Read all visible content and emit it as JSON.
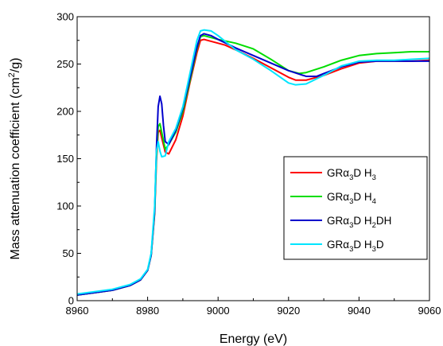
{
  "chart_data": {
    "type": "line",
    "xlabel": "Energy (eV)",
    "ylabel": "Mass attenuation coefficient (cm²/g)",
    "xlim": [
      8960,
      9060
    ],
    "ylim": [
      0,
      300
    ],
    "xticks": [
      8960,
      8980,
      9000,
      9020,
      9040,
      9060
    ],
    "yticks": [
      0,
      50,
      100,
      150,
      200,
      250,
      300
    ],
    "grid": false,
    "legend_position": "right",
    "series": [
      {
        "name": "GRα3D H3",
        "label_parts": [
          [
            "GR",
            ""
          ],
          [
            "α",
            ""
          ],
          [
            "3",
            "sub"
          ],
          [
            "D H",
            ""
          ],
          [
            "3",
            "sub"
          ]
        ],
        "color": "#ff0000",
        "x": [
          8960,
          8970,
          8975,
          8978,
          8980,
          8981,
          8982,
          8982.5,
          8983,
          8983.5,
          8984,
          8985,
          8986,
          8988,
          8990,
          8992,
          8994,
          8995,
          8996,
          8998,
          9000,
          9002,
          9005,
          9010,
          9015,
          9020,
          9022,
          9025,
          9030,
          9035,
          9040,
          9045,
          9050,
          9055,
          9060
        ],
        "y": [
          6,
          11,
          16,
          22,
          32,
          48,
          92,
          148,
          178,
          180,
          172,
          157,
          155,
          170,
          195,
          230,
          262,
          275,
          276,
          274,
          272,
          270,
          265,
          256,
          246,
          236,
          233,
          233,
          238,
          245,
          251,
          253,
          253,
          253,
          254
        ]
      },
      {
        "name": "GRα3D H4",
        "label_parts": [
          [
            "GR",
            ""
          ],
          [
            "α",
            ""
          ],
          [
            "3",
            "sub"
          ],
          [
            "D H",
            ""
          ],
          [
            "4",
            "sub"
          ]
        ],
        "color": "#00dd00",
        "x": [
          8960,
          8970,
          8975,
          8978,
          8980,
          8981,
          8982,
          8982.5,
          8983,
          8983.5,
          8984,
          8985,
          8986,
          8988,
          8990,
          8992,
          8994,
          8995,
          8996,
          8998,
          9000,
          9005,
          9010,
          9015,
          9020,
          9023,
          9025,
          9030,
          9035,
          9040,
          9045,
          9050,
          9055,
          9060
        ],
        "y": [
          6,
          11,
          16,
          22,
          32,
          48,
          94,
          152,
          184,
          187,
          178,
          160,
          165,
          178,
          200,
          232,
          266,
          279,
          280,
          278,
          276,
          272,
          266,
          255,
          243,
          240,
          241,
          247,
          254,
          259,
          261,
          262,
          263,
          263
        ]
      },
      {
        "name": "GRα3D H2DH",
        "label_parts": [
          [
            "GR",
            ""
          ],
          [
            "α",
            ""
          ],
          [
            "3",
            "sub"
          ],
          [
            "D H",
            ""
          ],
          [
            "2",
            "sub"
          ],
          [
            "DH",
            ""
          ]
        ],
        "color": "#0000cc",
        "x": [
          8960,
          8970,
          8975,
          8978,
          8980,
          8981,
          8982,
          8982.5,
          8983,
          8983.5,
          8984,
          8984.5,
          8985,
          8986,
          8988,
          8990,
          8992,
          8994,
          8995,
          8996,
          8998,
          9000,
          9005,
          9010,
          9015,
          9020,
          9025,
          9028,
          9030,
          9035,
          9040,
          9045,
          9050,
          9055,
          9060
        ],
        "y": [
          6,
          11,
          16,
          22,
          32,
          48,
          95,
          160,
          205,
          216,
          208,
          185,
          168,
          165,
          180,
          203,
          235,
          268,
          280,
          282,
          280,
          276,
          267,
          259,
          251,
          243,
          237,
          237,
          240,
          247,
          252,
          253,
          253,
          253,
          253
        ]
      },
      {
        "name": "GRα3D H3D",
        "label_parts": [
          [
            "GR",
            ""
          ],
          [
            "α",
            ""
          ],
          [
            "3",
            "sub"
          ],
          [
            "D H",
            ""
          ],
          [
            "3",
            "sub"
          ],
          [
            "D",
            ""
          ]
        ],
        "color": "#00e5ff",
        "x": [
          8960,
          8970,
          8975,
          8978,
          8980,
          8981,
          8982,
          8982.5,
          8983,
          8983.5,
          8984,
          8985,
          8986,
          8988,
          8990,
          8992,
          8994,
          8995,
          8996,
          8998,
          9000,
          9005,
          9010,
          9015,
          9020,
          9022,
          9025,
          9030,
          9035,
          9040,
          9045,
          9050,
          9055,
          9060
        ],
        "y": [
          7,
          12,
          17,
          23,
          33,
          50,
          100,
          158,
          168,
          158,
          152,
          153,
          168,
          182,
          205,
          240,
          275,
          285,
          286,
          285,
          280,
          265,
          255,
          243,
          230,
          228,
          229,
          238,
          248,
          253,
          254,
          254,
          255,
          256
        ]
      }
    ]
  }
}
